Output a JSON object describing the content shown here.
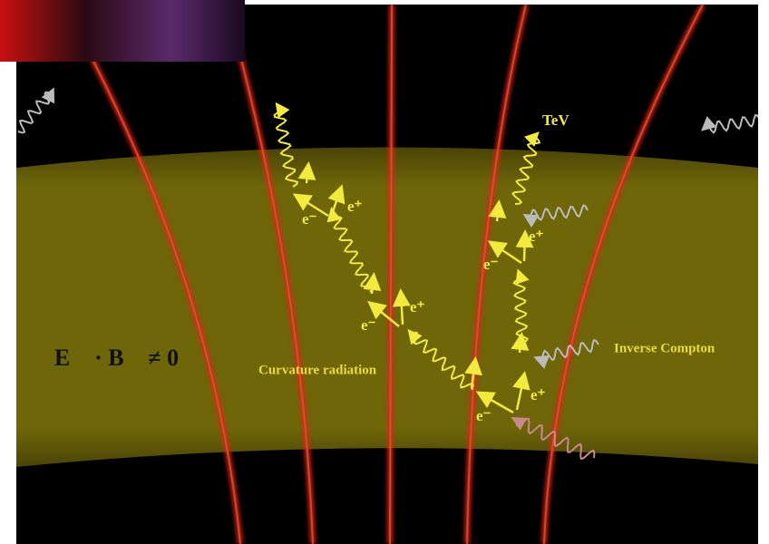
{
  "labels": {
    "tev": "TeV",
    "pair_1_electron": "e⁻",
    "pair_1_positron": "e⁺",
    "pair_2_electron": "e⁻",
    "pair_2_positron": "e⁺",
    "pair_3_electron": "e⁻",
    "pair_3_positron": "e⁺",
    "pair_4_electron": "e⁻",
    "pair_4_positron": "e⁺",
    "field_condition": "E⃗ · B⃗ ≠ 0",
    "curvature_radiation": "Curvature radiation",
    "inverse_compton": "Inverse Compton"
  }
}
